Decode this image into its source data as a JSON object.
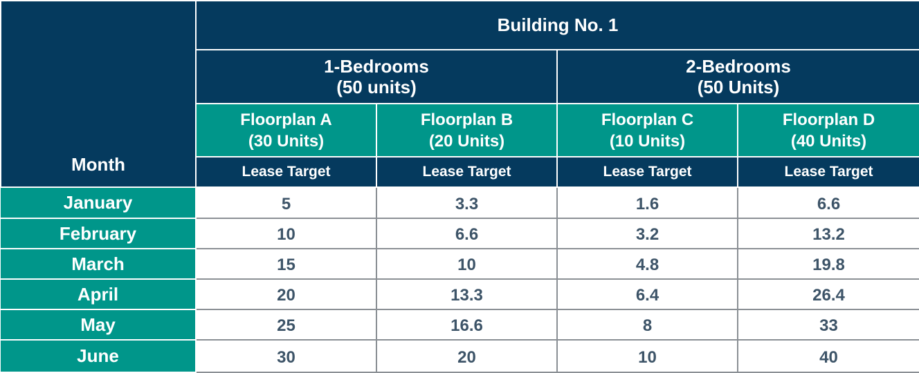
{
  "chart_data": {
    "type": "table",
    "row_header": "Month",
    "group_header": "Building No. 1",
    "bedroom_groups": [
      {
        "name": "1-Bedrooms",
        "units": "(50 units)"
      },
      {
        "name": "2-Bedrooms",
        "units": "(50 Units)"
      }
    ],
    "columns": [
      {
        "name": "Floorplan A",
        "units": "(30 Units)",
        "metric": "Lease Target"
      },
      {
        "name": "Floorplan B",
        "units": "(20 Units)",
        "metric": "Lease Target"
      },
      {
        "name": "Floorplan C",
        "units": "(10 Units)",
        "metric": "Lease Target"
      },
      {
        "name": "Floorplan D",
        "units": "(40 Units)",
        "metric": "Lease Target"
      }
    ],
    "rows": [
      {
        "month": "January",
        "values": [
          "5",
          "3.3",
          "1.6",
          "6.6"
        ]
      },
      {
        "month": "February",
        "values": [
          "10",
          "6.6",
          "3.2",
          "13.2"
        ]
      },
      {
        "month": "March",
        "values": [
          "15",
          "10",
          "4.8",
          "19.8"
        ]
      },
      {
        "month": "April",
        "values": [
          "20",
          "13.3",
          "6.4",
          "26.4"
        ]
      },
      {
        "month": "May",
        "values": [
          "25",
          "16.6",
          "8",
          "33"
        ]
      },
      {
        "month": "June",
        "values": [
          "30",
          "20",
          "10",
          "40"
        ]
      }
    ]
  },
  "colors": {
    "header_navy": "#053a5e",
    "header_teal": "#00968a",
    "value_text": "#3d5468"
  }
}
